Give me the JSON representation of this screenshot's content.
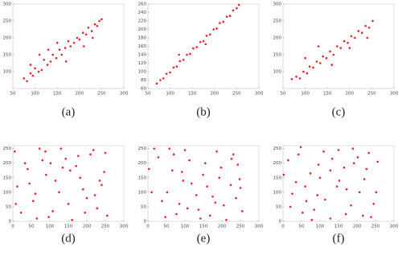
{
  "chart_data": [
    {
      "type": "scatter",
      "caption": "(a)",
      "color": "#e8202a",
      "x": [
        75,
        82,
        90,
        95,
        100,
        108,
        115,
        120,
        128,
        135,
        140,
        148,
        155,
        160,
        168,
        175,
        180,
        188,
        195,
        200,
        208,
        215,
        220,
        228,
        235,
        240,
        245,
        250,
        110,
        170,
        210,
        130,
        90,
        230,
        150
      ],
      "values": [
        80,
        72,
        95,
        88,
        110,
        100,
        105,
        135,
        120,
        130,
        150,
        140,
        165,
        150,
        170,
        190,
        175,
        185,
        200,
        195,
        215,
        210,
        230,
        220,
        240,
        235,
        250,
        255,
        150,
        130,
        175,
        165,
        120,
        200,
        185
      ],
      "xlim": [
        50,
        300
      ],
      "xticks": [
        50,
        100,
        150,
        200,
        250,
        300
      ],
      "ylim": [
        50,
        300
      ],
      "yticks": [
        100,
        150,
        200,
        250,
        300
      ]
    },
    {
      "type": "scatter",
      "caption": "(b)",
      "color": "#e8202a",
      "x": [
        70,
        78,
        85,
        92,
        100,
        108,
        115,
        122,
        130,
        138,
        145,
        152,
        160,
        168,
        175,
        182,
        190,
        198,
        205,
        212,
        220,
        228,
        235,
        242,
        250,
        255,
        120,
        180
      ],
      "values": [
        72,
        80,
        84,
        95,
        98,
        110,
        112,
        125,
        128,
        140,
        142,
        155,
        158,
        170,
        172,
        185,
        188,
        200,
        202,
        215,
        218,
        230,
        232,
        245,
        250,
        258,
        140,
        165
      ],
      "xlim": [
        50,
        300
      ],
      "xticks": [
        50,
        100,
        150,
        200,
        250,
        300
      ],
      "ylim": [
        60,
        260
      ],
      "yticks": [
        60,
        80,
        100,
        120,
        140,
        160,
        180,
        200,
        220,
        240,
        260
      ]
    },
    {
      "type": "scatter",
      "caption": "(c)",
      "color": "#e8202a",
      "x": [
        70,
        80,
        88,
        96,
        104,
        110,
        118,
        126,
        134,
        140,
        148,
        156,
        164,
        172,
        180,
        188,
        196,
        204,
        212,
        220,
        228,
        236,
        244,
        252,
        100,
        160,
        200,
        130,
        240
      ],
      "values": [
        78,
        85,
        80,
        100,
        95,
        115,
        112,
        130,
        125,
        145,
        140,
        160,
        150,
        175,
        170,
        190,
        185,
        205,
        200,
        220,
        215,
        235,
        230,
        250,
        140,
        120,
        170,
        175,
        200
      ],
      "xlim": [
        50,
        300
      ],
      "xticks": [
        50,
        100,
        150,
        200,
        250,
        300
      ],
      "ylim": [
        50,
        300
      ],
      "yticks": [
        100,
        150,
        200,
        250,
        300
      ]
    },
    {
      "type": "scatter",
      "caption": "(d)",
      "color": "#e8202a",
      "x": [
        5,
        22,
        40,
        61,
        80,
        97,
        115,
        130,
        150,
        171,
        190,
        210,
        228,
        247,
        12,
        33,
        55,
        72,
        90,
        108,
        125,
        143,
        160,
        182,
        200,
        218,
        240,
        255,
        8,
        45,
        88,
        135,
        177,
        222,
        250,
        65,
        102,
        155,
        195,
        235
      ],
      "values": [
        240,
        30,
        180,
        95,
        210,
        15,
        140,
        250,
        60,
        190,
        110,
        230,
        45,
        170,
        120,
        200,
        70,
        250,
        160,
        35,
        100,
        215,
        5,
        150,
        80,
        245,
        125,
        20,
        60,
        130,
        240,
        185,
        225,
        90,
        235,
        10,
        200,
        175,
        30,
        140
      ],
      "xlim": [
        0,
        300
      ],
      "xticks": [
        0,
        50,
        100,
        150,
        200,
        250,
        300
      ],
      "ylim": [
        0,
        260
      ],
      "yticks": [
        0,
        50,
        100,
        150,
        200,
        250
      ]
    },
    {
      "type": "scatter",
      "caption": "(e)",
      "color": "#e8202a",
      "x": [
        10,
        28,
        47,
        66,
        85,
        100,
        118,
        137,
        155,
        175,
        193,
        212,
        231,
        250,
        3,
        38,
        58,
        77,
        95,
        112,
        131,
        149,
        168,
        186,
        205,
        224,
        243,
        255,
        17,
        52,
        92,
        142,
        182,
        226,
        248,
        70,
        107,
        160,
        198,
        238
      ],
      "values": [
        100,
        220,
        15,
        175,
        60,
        245,
        130,
        40,
        200,
        85,
        150,
        5,
        230,
        115,
        180,
        70,
        250,
        25,
        140,
        210,
        90,
        160,
        20,
        240,
        55,
        125,
        195,
        35,
        250,
        100,
        170,
        10,
        65,
        215,
        145,
        230,
        45,
        120,
        185,
        80
      ],
      "xlim": [
        0,
        300
      ],
      "xticks": [
        0,
        50,
        100,
        150,
        200,
        250,
        300
      ],
      "ylim": [
        0,
        260
      ],
      "yticks": [
        0,
        50,
        100,
        150,
        200,
        250
      ]
    },
    {
      "type": "scatter",
      "caption": "(f)",
      "color": "#e8202a",
      "x": [
        2,
        20,
        42,
        60,
        78,
        96,
        114,
        133,
        152,
        170,
        189,
        207,
        226,
        245,
        14,
        35,
        53,
        74,
        93,
        110,
        128,
        146,
        165,
        184,
        202,
        220,
        238,
        256,
        25,
        48,
        84,
        128,
        172,
        216,
        252,
        63,
        100,
        150,
        192,
        232
      ],
      "values": [
        160,
        50,
        230,
        120,
        5,
        195,
        75,
        215,
        140,
        25,
        250,
        100,
        180,
        60,
        210,
        135,
        30,
        165,
        90,
        240,
        10,
        120,
        185,
        55,
        220,
        145,
        15,
        205,
        95,
        255,
        40,
        175,
        110,
        20,
        100,
        70,
        150,
        245,
        200,
        235
      ],
      "xlim": [
        0,
        300
      ],
      "xticks": [
        0,
        50,
        100,
        150,
        200,
        250,
        300
      ],
      "ylim": [
        0,
        260
      ],
      "yticks": [
        0,
        50,
        100,
        150,
        200,
        250
      ]
    }
  ]
}
